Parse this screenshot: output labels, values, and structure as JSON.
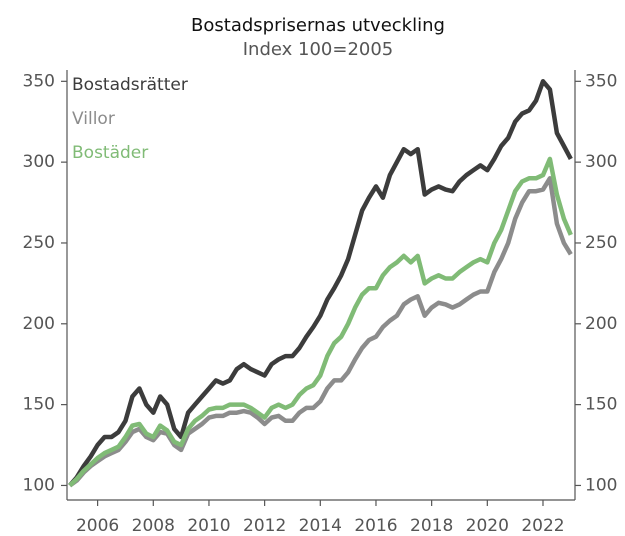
{
  "chart_data": {
    "type": "line",
    "title": "Bostadsprisernas utveckling",
    "subtitle": "Index 100=2005",
    "x": [
      2005,
      2005.25,
      2005.5,
      2005.75,
      2006,
      2006.25,
      2006.5,
      2006.75,
      2007,
      2007.25,
      2007.5,
      2007.75,
      2008,
      2008.25,
      2008.5,
      2008.75,
      2009,
      2009.25,
      2009.5,
      2009.75,
      2010,
      2010.25,
      2010.5,
      2010.75,
      2011,
      2011.25,
      2011.5,
      2011.75,
      2012,
      2012.25,
      2012.5,
      2012.75,
      2013,
      2013.25,
      2013.5,
      2013.75,
      2014,
      2014.25,
      2014.5,
      2014.75,
      2015,
      2015.25,
      2015.5,
      2015.75,
      2016,
      2016.25,
      2016.5,
      2016.75,
      2017,
      2017.25,
      2017.5,
      2017.75,
      2018,
      2018.25,
      2018.5,
      2018.75,
      2019,
      2019.25,
      2019.5,
      2019.75,
      2020,
      2020.25,
      2020.5,
      2020.75,
      2021,
      2021.25,
      2021.5,
      2021.75,
      2022,
      2022.25,
      2022.5,
      2022.75,
      2023
    ],
    "series": [
      {
        "name": "Bostadsrätter",
        "color": "#3c3c3c",
        "values": [
          100,
          105,
          112,
          118,
          125,
          130,
          130,
          133,
          140,
          155,
          160,
          150,
          145,
          155,
          150,
          135,
          130,
          145,
          150,
          155,
          160,
          165,
          163,
          165,
          172,
          175,
          172,
          170,
          168,
          175,
          178,
          180,
          180,
          185,
          192,
          198,
          205,
          215,
          222,
          230,
          240,
          255,
          270,
          278,
          285,
          278,
          292,
          300,
          308,
          305,
          308,
          280,
          283,
          285,
          283,
          282,
          288,
          292,
          295,
          298,
          295,
          302,
          310,
          315,
          325,
          330,
          332,
          338,
          350,
          345,
          318,
          310,
          302
        ]
      },
      {
        "name": "Villor",
        "color": "#8c8c8c",
        "values": [
          100,
          103,
          108,
          112,
          115,
          118,
          120,
          122,
          127,
          133,
          135,
          130,
          128,
          133,
          132,
          125,
          122,
          132,
          135,
          138,
          142,
          143,
          143,
          145,
          145,
          146,
          145,
          142,
          138,
          142,
          143,
          140,
          140,
          145,
          148,
          148,
          152,
          160,
          165,
          165,
          170,
          178,
          185,
          190,
          192,
          198,
          202,
          205,
          212,
          215,
          217,
          205,
          210,
          213,
          212,
          210,
          212,
          215,
          218,
          220,
          220,
          232,
          240,
          250,
          265,
          275,
          282,
          282,
          283,
          290,
          262,
          250,
          243
        ]
      },
      {
        "name": "Bostäder",
        "color": "#80bb76",
        "values": [
          100,
          104,
          109,
          113,
          117,
          120,
          122,
          124,
          130,
          137,
          138,
          132,
          130,
          137,
          134,
          127,
          125,
          135,
          140,
          143,
          147,
          148,
          148,
          150,
          150,
          150,
          148,
          145,
          142,
          148,
          150,
          148,
          150,
          156,
          160,
          162,
          168,
          180,
          188,
          192,
          200,
          210,
          218,
          222,
          222,
          230,
          235,
          238,
          242,
          238,
          242,
          225,
          228,
          230,
          228,
          228,
          232,
          235,
          238,
          240,
          238,
          250,
          258,
          270,
          282,
          288,
          290,
          290,
          292,
          302,
          280,
          265,
          255
        ]
      }
    ],
    "xlim": [
      2004.9,
      2023.15
    ],
    "xticks": [
      2006,
      2008,
      2010,
      2012,
      2014,
      2016,
      2018,
      2020,
      2022
    ],
    "ylim": [
      91,
      357
    ],
    "yticks": [
      100,
      150,
      200,
      250,
      300,
      350
    ],
    "legend": "upper left"
  }
}
